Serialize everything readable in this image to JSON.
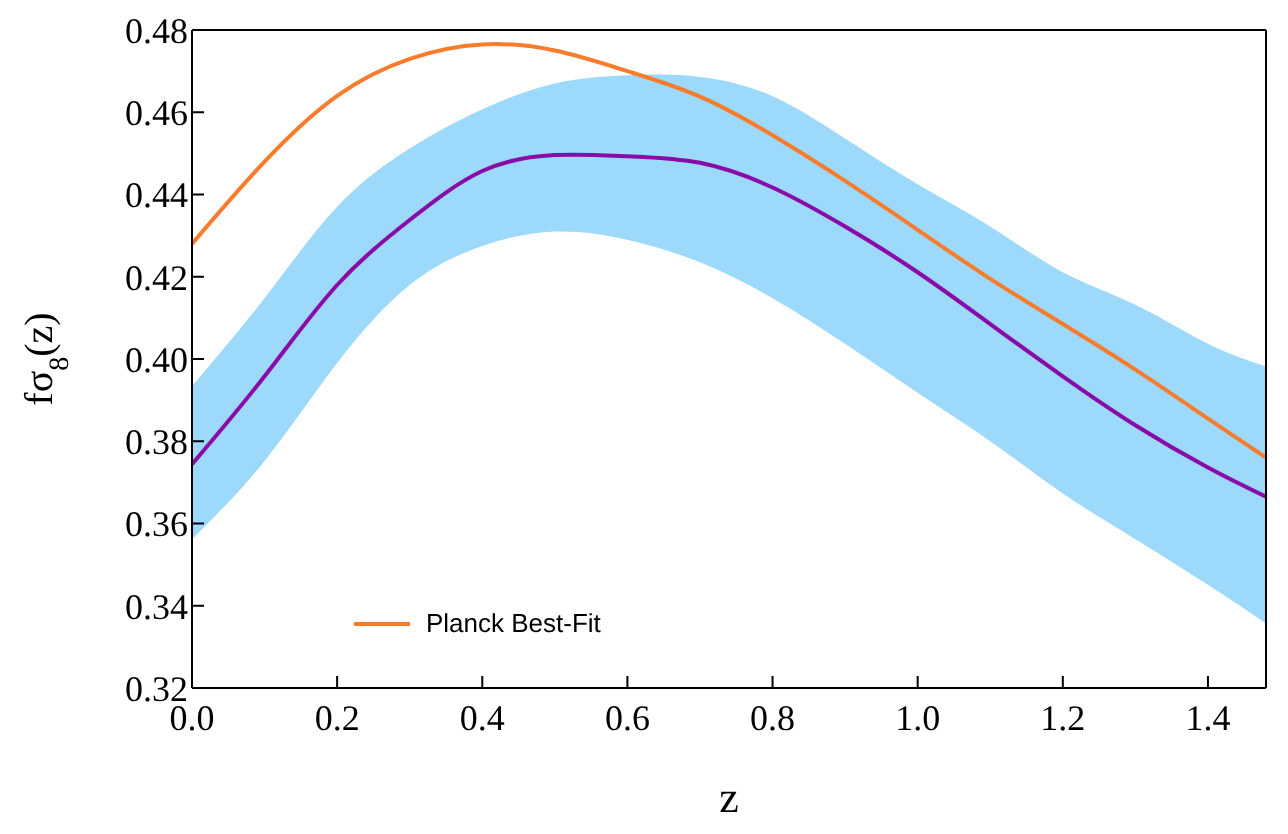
{
  "chart_data": {
    "type": "line",
    "xlabel": "z",
    "ylabel": "fσ$_{8}$(z)",
    "x": [
      0,
      0.1,
      0.2,
      0.3,
      0.4,
      0.5,
      0.6,
      0.7,
      0.8,
      0.9,
      1.0,
      1.1,
      1.2,
      1.3,
      1.4,
      1.48
    ],
    "series": [
      {
        "name": "Planck Best-Fit",
        "color": "#f97c2c",
        "values": [
          0.428,
          0.448,
          0.464,
          0.473,
          0.4765,
          0.475,
          0.47,
          0.4638,
          0.4544,
          0.4433,
          0.4314,
          0.4195,
          0.4085,
          0.3974,
          0.3855,
          0.376
        ]
      },
      {
        "color": "#8a0ca8",
        "values": [
          0.3744,
          0.3958,
          0.418,
          0.4338,
          0.4457,
          0.4496,
          0.4493,
          0.4477,
          0.4417,
          0.4322,
          0.4211,
          0.4085,
          0.3958,
          0.3839,
          0.3736,
          0.3665
        ],
        "lower": [
          0.3562,
          0.3752,
          0.399,
          0.418,
          0.4275,
          0.431,
          0.429,
          0.4235,
          0.4148,
          0.4037,
          0.3918,
          0.38,
          0.3673,
          0.3562,
          0.3451,
          0.3357
        ],
        "upper": [
          0.3934,
          0.4148,
          0.437,
          0.4512,
          0.4607,
          0.467,
          0.469,
          0.4686,
          0.4639,
          0.4536,
          0.4425,
          0.4322,
          0.4211,
          0.4132,
          0.4037,
          0.3982
        ]
      }
    ],
    "xlim": [
      0,
      1.48
    ],
    "xticks": [
      {
        "value": 0,
        "label": "0.0"
      },
      0.2,
      0.4,
      0.6,
      0.8,
      {
        "value": 1,
        "label": "1.0"
      },
      1.2,
      1.4
    ],
    "ylim": [
      0.32,
      0.48
    ],
    "yticks": [
      0.32,
      0.34,
      0.36,
      0.38,
      {
        "value": 0.4,
        "label": "0.40"
      },
      0.42,
      0.44,
      0.46,
      0.48
    ],
    "grid": false,
    "legend": "bottom left",
    "marker": "none",
    "line_style": "solid"
  }
}
